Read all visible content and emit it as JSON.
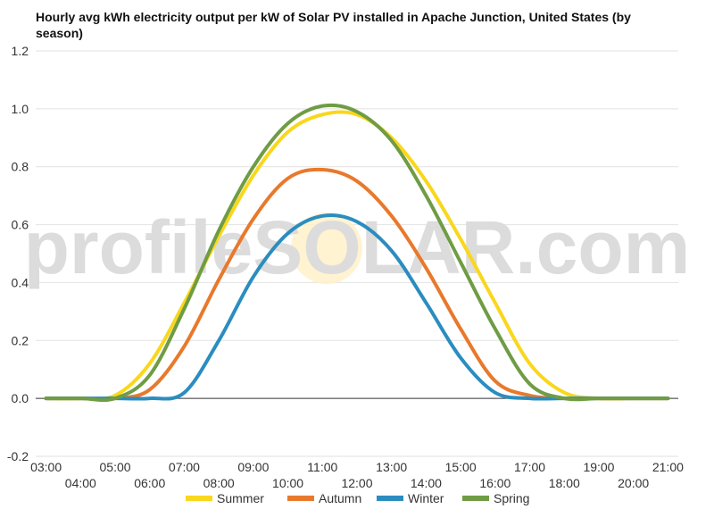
{
  "chart_data": {
    "type": "line",
    "title": "Hourly avg kWh electricity output per kW of Solar PV installed in Apache Junction, United States (by season)",
    "watermark": "profileSOLAR.com",
    "xlabel": "",
    "ylabel": "",
    "ylim": [
      -0.2,
      1.2
    ],
    "yticks": [
      "1.2",
      "1.0",
      "0.8",
      "0.6",
      "0.4",
      "0.2",
      "0.0",
      "-0.2"
    ],
    "ytick_values": [
      1.2,
      1.0,
      0.8,
      0.6,
      0.4,
      0.2,
      0.0,
      -0.2
    ],
    "x_labels": [
      "03:00",
      "04:00",
      "05:00",
      "06:00",
      "07:00",
      "08:00",
      "09:00",
      "10:00",
      "11:00",
      "12:00",
      "13:00",
      "14:00",
      "15:00",
      "16:00",
      "17:00",
      "18:00",
      "19:00",
      "20:00",
      "21:00"
    ],
    "x_hours": [
      3,
      4,
      5,
      6,
      7,
      8,
      9,
      10,
      11,
      12,
      13,
      14,
      15,
      16,
      17,
      18,
      19,
      20,
      21
    ],
    "grid": true,
    "legend_position": "bottom",
    "series": [
      {
        "name": "Summer",
        "color": "#f9d71c",
        "values": [
          0,
          0,
          0.01,
          0.12,
          0.33,
          0.56,
          0.77,
          0.92,
          0.98,
          0.98,
          0.9,
          0.75,
          0.55,
          0.33,
          0.12,
          0.02,
          0,
          0,
          0
        ]
      },
      {
        "name": "Autumn",
        "color": "#e8792c",
        "values": [
          0,
          0,
          0,
          0.03,
          0.18,
          0.41,
          0.62,
          0.76,
          0.79,
          0.75,
          0.63,
          0.45,
          0.24,
          0.06,
          0.01,
          0,
          0,
          0,
          0
        ]
      },
      {
        "name": "Winter",
        "color": "#2b8dbf",
        "values": [
          0,
          0,
          0,
          0,
          0.02,
          0.2,
          0.42,
          0.57,
          0.63,
          0.61,
          0.51,
          0.33,
          0.14,
          0.02,
          0,
          0,
          0,
          0,
          0
        ]
      },
      {
        "name": "Spring",
        "color": "#6f9c44",
        "values": [
          0,
          0,
          0,
          0.08,
          0.31,
          0.58,
          0.8,
          0.95,
          1.01,
          0.99,
          0.89,
          0.7,
          0.47,
          0.24,
          0.05,
          0,
          0,
          0,
          0
        ]
      }
    ]
  }
}
